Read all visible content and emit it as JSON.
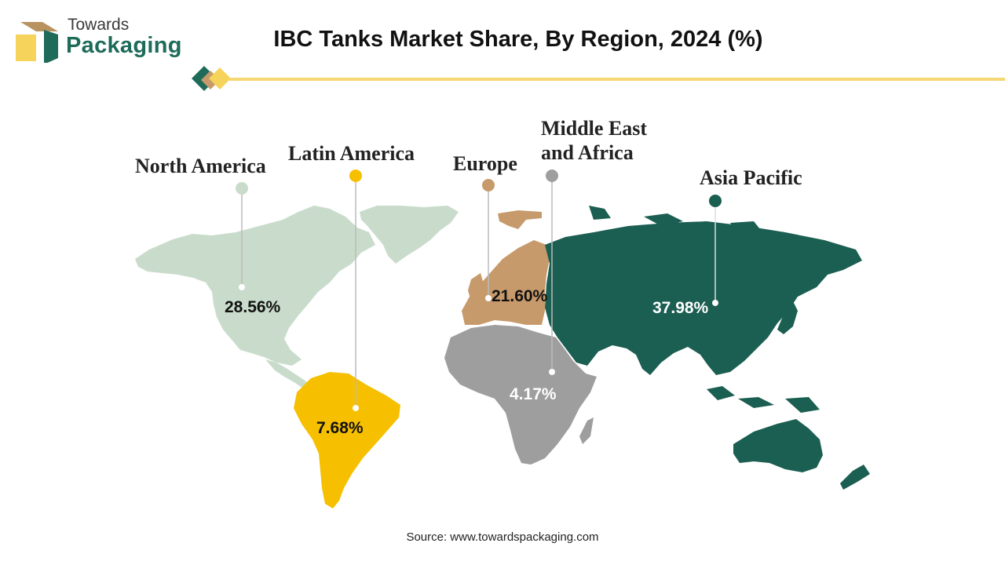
{
  "brand": {
    "line1": "Towards",
    "line2": "Packaging"
  },
  "title": "IBC Tanks Market Share, By Region, 2024 (%)",
  "colors": {
    "north_america": "#c9dccb",
    "latin_america": "#f6bf00",
    "europe": "#c79a6b",
    "middle_east_africa": "#9e9e9e",
    "asia_pacific": "#1b5e52",
    "accent_line": "#f7d774"
  },
  "chart_data": {
    "type": "map",
    "title": "IBC Tanks Market Share, By Region, 2024 (%)",
    "unit": "%",
    "regions": [
      {
        "name": "North America",
        "value": 28.56,
        "label": "28.56%"
      },
      {
        "name": "Latin America",
        "value": 7.68,
        "label": "7.68%"
      },
      {
        "name": "Europe",
        "value": 21.6,
        "label": "21.60%"
      },
      {
        "name": "Middle East and Africa",
        "name_lines": [
          "Middle East",
          "and Africa"
        ],
        "value": 4.17,
        "label": "4.17%"
      },
      {
        "name": "Asia Pacific",
        "value": 37.98,
        "label": "37.98%"
      }
    ]
  },
  "source": "Source: www.towardspackaging.com"
}
